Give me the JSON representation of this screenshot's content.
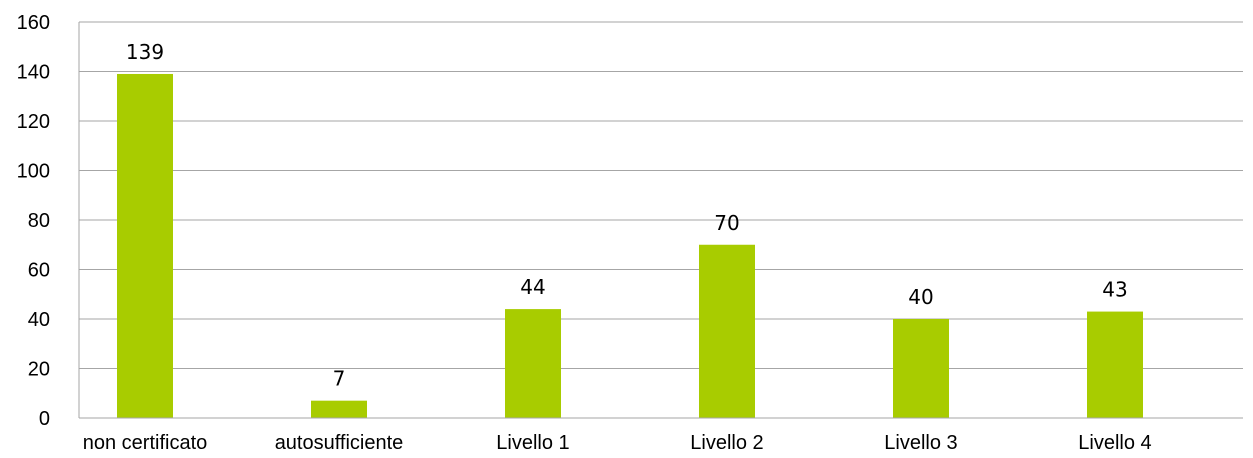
{
  "chart_data": {
    "type": "bar",
    "categories": [
      "non certificato",
      "autosufficiente",
      "Livello 1",
      "Livello 2",
      "Livello 3",
      "Livello 4"
    ],
    "values": [
      139,
      7,
      44,
      70,
      40,
      43
    ],
    "data_labels": [
      "139",
      "7",
      "44",
      "70",
      "40",
      "43"
    ],
    "yticks": [
      0,
      20,
      40,
      60,
      80,
      100,
      120,
      140,
      160
    ],
    "ylim": [
      0,
      160
    ],
    "grid": true,
    "bar_color": "#a8cc00",
    "grid_color": "#a6a6a6",
    "legend": false
  }
}
